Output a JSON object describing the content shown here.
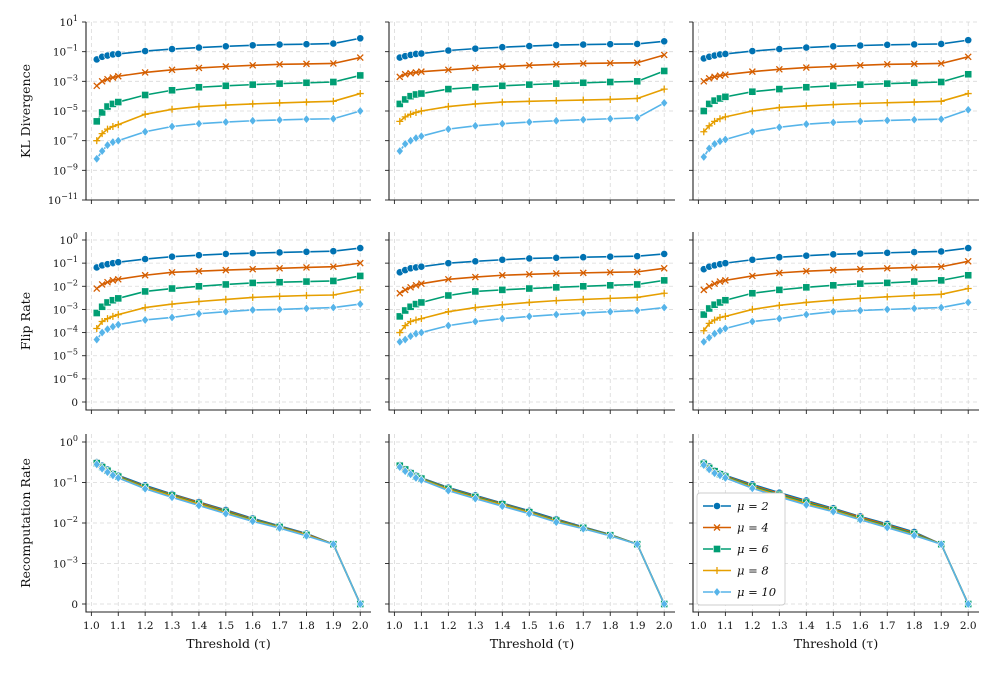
{
  "chart_data": {
    "type": "line",
    "x": [
      1.02,
      1.04,
      1.06,
      1.08,
      1.1,
      1.2,
      1.3,
      1.4,
      1.5,
      1.6,
      1.7,
      1.8,
      1.9,
      2.0
    ],
    "xticks": [
      1.0,
      1.1,
      1.2,
      1.3,
      1.4,
      1.5,
      1.6,
      1.7,
      1.8,
      1.9,
      2.0
    ],
    "xtick_labels": [
      "1.0",
      "1.1",
      "1.2",
      "1.3",
      "1.4",
      "1.5",
      "1.6",
      "1.7",
      "1.8",
      "1.9",
      "2.0"
    ],
    "xlabel": "Threshold (τ)",
    "xlim": [
      0.98,
      2.04
    ],
    "series_meta": [
      {
        "name": "μ = 2",
        "color": "#0072b2",
        "marker": "circle"
      },
      {
        "name": "μ = 4",
        "color": "#d55e00",
        "marker": "x"
      },
      {
        "name": "μ = 6",
        "color": "#009e73",
        "marker": "square"
      },
      {
        "name": "μ = 8",
        "color": "#e69f00",
        "marker": "plus"
      },
      {
        "name": "μ = 10",
        "color": "#56b4e9",
        "marker": "diamond"
      }
    ],
    "rows": [
      {
        "ylabel": "KL Divergence",
        "scale": "log",
        "ylim_log": [
          -11,
          1
        ],
        "yticks": [
          {
            "exp": 1,
            "base": "10",
            "sup": "1"
          },
          {
            "exp": -1,
            "base": "10",
            "sup": "−1"
          },
          {
            "exp": -3,
            "base": "10",
            "sup": "−3"
          },
          {
            "exp": -5,
            "base": "10",
            "sup": "−5"
          },
          {
            "exp": -7,
            "base": "10",
            "sup": "−7"
          },
          {
            "exp": -9,
            "base": "10",
            "sup": "−9"
          },
          {
            "exp": -11,
            "base": "10",
            "sup": "−11"
          }
        ],
        "panels": [
          [
            [
              0.03,
              0.045,
              0.055,
              0.065,
              0.07,
              0.11,
              0.15,
              0.19,
              0.23,
              0.27,
              0.3,
              0.32,
              0.35,
              0.8
            ],
            [
              0.0005,
              0.001,
              0.0014,
              0.0018,
              0.0022,
              0.004,
              0.006,
              0.008,
              0.01,
              0.012,
              0.014,
              0.015,
              0.016,
              0.04
            ],
            [
              2e-06,
              8e-06,
              2e-05,
              3e-05,
              4e-05,
              0.00012,
              0.00025,
              0.0004,
              0.0005,
              0.0006,
              0.0007,
              0.0008,
              0.0009,
              0.0025
            ],
            [
              1e-07,
              3e-07,
              6e-07,
              9e-07,
              1.2e-06,
              6e-06,
              1.3e-05,
              2e-05,
              2.5e-05,
              3e-05,
              3.5e-05,
              4e-05,
              4.5e-05,
              0.00015
            ],
            [
              6e-09,
              2e-08,
              5e-08,
              8e-08,
              1e-07,
              4e-07,
              9e-07,
              1.4e-06,
              1.8e-06,
              2.2e-06,
              2.5e-06,
              2.8e-06,
              3e-06,
              1e-05
            ]
          ],
          [
            [
              0.04,
              0.05,
              0.06,
              0.07,
              0.075,
              0.12,
              0.16,
              0.2,
              0.24,
              0.28,
              0.3,
              0.32,
              0.33,
              0.5
            ],
            [
              0.002,
              0.003,
              0.0035,
              0.004,
              0.0045,
              0.006,
              0.008,
              0.01,
              0.012,
              0.014,
              0.016,
              0.017,
              0.018,
              0.06
            ],
            [
              3e-05,
              6e-05,
              0.0001,
              0.00013,
              0.00015,
              0.0003,
              0.0004,
              0.0005,
              0.0006,
              0.0007,
              0.0008,
              0.0009,
              0.001,
              0.005
            ],
            [
              2e-06,
              4e-06,
              6e-06,
              8e-06,
              1e-05,
              2e-05,
              3e-05,
              4e-05,
              4.5e-05,
              5e-05,
              5.5e-05,
              6e-05,
              7e-05,
              0.0003
            ],
            [
              2e-08,
              6e-08,
              1e-07,
              1.5e-07,
              2e-07,
              6e-07,
              1e-06,
              1.4e-06,
              1.8e-06,
              2.2e-06,
              2.6e-06,
              3e-06,
              3.5e-06,
              3.5e-05
            ]
          ],
          [
            [
              0.035,
              0.045,
              0.055,
              0.065,
              0.07,
              0.11,
              0.15,
              0.19,
              0.23,
              0.26,
              0.29,
              0.31,
              0.33,
              0.6
            ],
            [
              0.001,
              0.0016,
              0.002,
              0.0024,
              0.0028,
              0.0045,
              0.0065,
              0.0085,
              0.01,
              0.012,
              0.014,
              0.015,
              0.016,
              0.045
            ],
            [
              1e-05,
              3e-05,
              5e-05,
              7e-05,
              9e-05,
              0.0002,
              0.0003,
              0.0004,
              0.0005,
              0.0006,
              0.0007,
              0.0008,
              0.0009,
              0.003
            ],
            [
              4e-07,
              1e-06,
              2e-06,
              3e-06,
              4e-06,
              1e-05,
              1.7e-05,
              2.2e-05,
              2.7e-05,
              3.2e-05,
              3.6e-05,
              4e-05,
              4.5e-05,
              0.00015
            ],
            [
              8e-09,
              3e-08,
              6e-08,
              9e-08,
              1.2e-07,
              4e-07,
              8e-07,
              1.3e-06,
              1.7e-06,
              2e-06,
              2.3e-06,
              2.6e-06,
              2.8e-06,
              1.2e-05
            ]
          ]
        ]
      },
      {
        "ylabel": "Flip Rate",
        "scale": "symlog",
        "yticks": [
          {
            "exp": 0,
            "base": "10",
            "sup": "0"
          },
          {
            "exp": -1,
            "base": "10",
            "sup": "−1"
          },
          {
            "exp": -2,
            "base": "10",
            "sup": "−2"
          },
          {
            "exp": -3,
            "base": "10",
            "sup": "−3"
          },
          {
            "exp": -4,
            "base": "10",
            "sup": "−4"
          },
          {
            "exp": -5,
            "base": "10",
            "sup": "−5"
          },
          {
            "exp": -6,
            "base": "10",
            "sup": "−6"
          },
          {
            "zero": true,
            "base": "0",
            "sup": ""
          }
        ],
        "panels": [
          [
            [
              0.065,
              0.08,
              0.09,
              0.1,
              0.11,
              0.15,
              0.19,
              0.22,
              0.25,
              0.27,
              0.29,
              0.31,
              0.33,
              0.45
            ],
            [
              0.008,
              0.012,
              0.015,
              0.018,
              0.02,
              0.03,
              0.04,
              0.045,
              0.05,
              0.055,
              0.06,
              0.065,
              0.07,
              0.1
            ],
            [
              0.0007,
              0.0013,
              0.002,
              0.0025,
              0.003,
              0.006,
              0.008,
              0.01,
              0.012,
              0.014,
              0.015,
              0.016,
              0.017,
              0.028
            ],
            [
              0.00015,
              0.0003,
              0.0004,
              0.0005,
              0.0006,
              0.0012,
              0.0017,
              0.0022,
              0.0027,
              0.0033,
              0.0037,
              0.004,
              0.0042,
              0.007
            ],
            [
              5e-05,
              0.0001,
              0.00014,
              0.00018,
              0.00022,
              0.00035,
              0.00045,
              0.00065,
              0.0008,
              0.00095,
              0.001,
              0.0011,
              0.0012,
              0.0017
            ]
          ],
          [
            [
              0.04,
              0.05,
              0.06,
              0.065,
              0.07,
              0.1,
              0.12,
              0.14,
              0.16,
              0.17,
              0.18,
              0.19,
              0.2,
              0.25
            ],
            [
              0.005,
              0.007,
              0.009,
              0.011,
              0.013,
              0.02,
              0.025,
              0.03,
              0.033,
              0.036,
              0.038,
              0.04,
              0.042,
              0.06
            ],
            [
              0.0005,
              0.0009,
              0.0013,
              0.0017,
              0.002,
              0.004,
              0.006,
              0.007,
              0.008,
              0.009,
              0.01,
              0.011,
              0.012,
              0.018
            ],
            [
              0.0001,
              0.0002,
              0.0003,
              0.00035,
              0.0004,
              0.0008,
              0.0012,
              0.0016,
              0.002,
              0.0024,
              0.0027,
              0.003,
              0.0033,
              0.005
            ],
            [
              4e-05,
              5e-05,
              7e-05,
              9e-05,
              0.0001,
              0.0002,
              0.0003,
              0.0004,
              0.0005,
              0.0006,
              0.0007,
              0.0008,
              0.0009,
              0.0012
            ]
          ],
          [
            [
              0.055,
              0.07,
              0.08,
              0.09,
              0.1,
              0.14,
              0.18,
              0.21,
              0.24,
              0.26,
              0.28,
              0.3,
              0.32,
              0.45
            ],
            [
              0.007,
              0.01,
              0.013,
              0.016,
              0.018,
              0.028,
              0.038,
              0.045,
              0.05,
              0.055,
              0.06,
              0.065,
              0.07,
              0.12
            ],
            [
              0.0006,
              0.0011,
              0.0016,
              0.002,
              0.0025,
              0.005,
              0.007,
              0.009,
              0.011,
              0.013,
              0.014,
              0.016,
              0.018,
              0.03
            ],
            [
              0.00012,
              0.00025,
              0.00035,
              0.00045,
              0.0005,
              0.001,
              0.0015,
              0.002,
              0.0025,
              0.003,
              0.0035,
              0.004,
              0.0045,
              0.008
            ],
            [
              4e-05,
              6e-05,
              9e-05,
              0.00012,
              0.00015,
              0.0003,
              0.0004,
              0.0006,
              0.0008,
              0.0009,
              0.001,
              0.0011,
              0.0012,
              0.002
            ]
          ]
        ]
      },
      {
        "ylabel": "Recomputation Rate",
        "scale": "symlog",
        "yticks": [
          {
            "exp": 0,
            "base": "10",
            "sup": "0"
          },
          {
            "exp": -1,
            "base": "10",
            "sup": "−1"
          },
          {
            "exp": -2,
            "base": "10",
            "sup": "−2"
          },
          {
            "exp": -3,
            "base": "10",
            "sup": "−3"
          },
          {
            "zero": true,
            "base": "0",
            "sup": ""
          }
        ],
        "panels": [
          [
            [
              0.32,
              0.26,
              0.21,
              0.17,
              0.15,
              0.085,
              0.052,
              0.033,
              0.021,
              0.013,
              0.0085,
              0.0055,
              0.003,
              0
            ],
            [
              0.31,
              0.25,
              0.2,
              0.165,
              0.145,
              0.08,
              0.05,
              0.032,
              0.02,
              0.0125,
              0.0082,
              0.0053,
              0.003,
              0
            ],
            [
              0.3,
              0.24,
              0.195,
              0.16,
              0.14,
              0.077,
              0.048,
              0.03,
              0.019,
              0.012,
              0.008,
              0.0051,
              0.003,
              0
            ],
            [
              0.29,
              0.23,
              0.19,
              0.155,
              0.135,
              0.074,
              0.046,
              0.029,
              0.018,
              0.0115,
              0.0078,
              0.005,
              0.003,
              0
            ],
            [
              0.28,
              0.22,
              0.18,
              0.15,
              0.13,
              0.07,
              0.043,
              0.027,
              0.017,
              0.011,
              0.0075,
              0.0048,
              0.003,
              0
            ]
          ],
          [
            [
              0.27,
              0.22,
              0.18,
              0.15,
              0.13,
              0.075,
              0.048,
              0.031,
              0.02,
              0.0125,
              0.008,
              0.0052,
              0.003,
              0
            ],
            [
              0.265,
              0.215,
              0.175,
              0.145,
              0.127,
              0.072,
              0.046,
              0.03,
              0.019,
              0.012,
              0.0078,
              0.0051,
              0.003,
              0
            ],
            [
              0.26,
              0.21,
              0.17,
              0.14,
              0.125,
              0.07,
              0.044,
              0.029,
              0.0185,
              0.0115,
              0.0076,
              0.005,
              0.003,
              0
            ],
            [
              0.25,
              0.2,
              0.165,
              0.135,
              0.12,
              0.067,
              0.042,
              0.028,
              0.018,
              0.011,
              0.0074,
              0.0049,
              0.003,
              0
            ],
            [
              0.24,
              0.19,
              0.16,
              0.13,
              0.115,
              0.063,
              0.04,
              0.026,
              0.017,
              0.0105,
              0.0072,
              0.0048,
              0.003,
              0
            ]
          ],
          [
            [
              0.31,
              0.25,
              0.2,
              0.17,
              0.15,
              0.09,
              0.056,
              0.036,
              0.023,
              0.0145,
              0.0095,
              0.006,
              0.003,
              0
            ],
            [
              0.3,
              0.24,
              0.195,
              0.165,
              0.145,
              0.085,
              0.053,
              0.034,
              0.022,
              0.014,
              0.009,
              0.0057,
              0.003,
              0
            ],
            [
              0.29,
              0.23,
              0.19,
              0.16,
              0.14,
              0.08,
              0.05,
              0.032,
              0.021,
              0.013,
              0.0085,
              0.0054,
              0.003,
              0
            ],
            [
              0.28,
              0.22,
              0.18,
              0.155,
              0.135,
              0.076,
              0.047,
              0.03,
              0.02,
              0.0125,
              0.008,
              0.0051,
              0.003,
              0
            ],
            [
              0.27,
              0.21,
              0.17,
              0.15,
              0.13,
              0.072,
              0.044,
              0.028,
              0.019,
              0.012,
              0.0077,
              0.0049,
              0.003,
              0
            ]
          ]
        ]
      }
    ],
    "legend": {
      "location": "lower-left",
      "panel": "row-3-col-3",
      "entries": [
        "μ = 2",
        "μ = 4",
        "μ = 6",
        "μ = 8",
        "μ = 10"
      ]
    }
  }
}
